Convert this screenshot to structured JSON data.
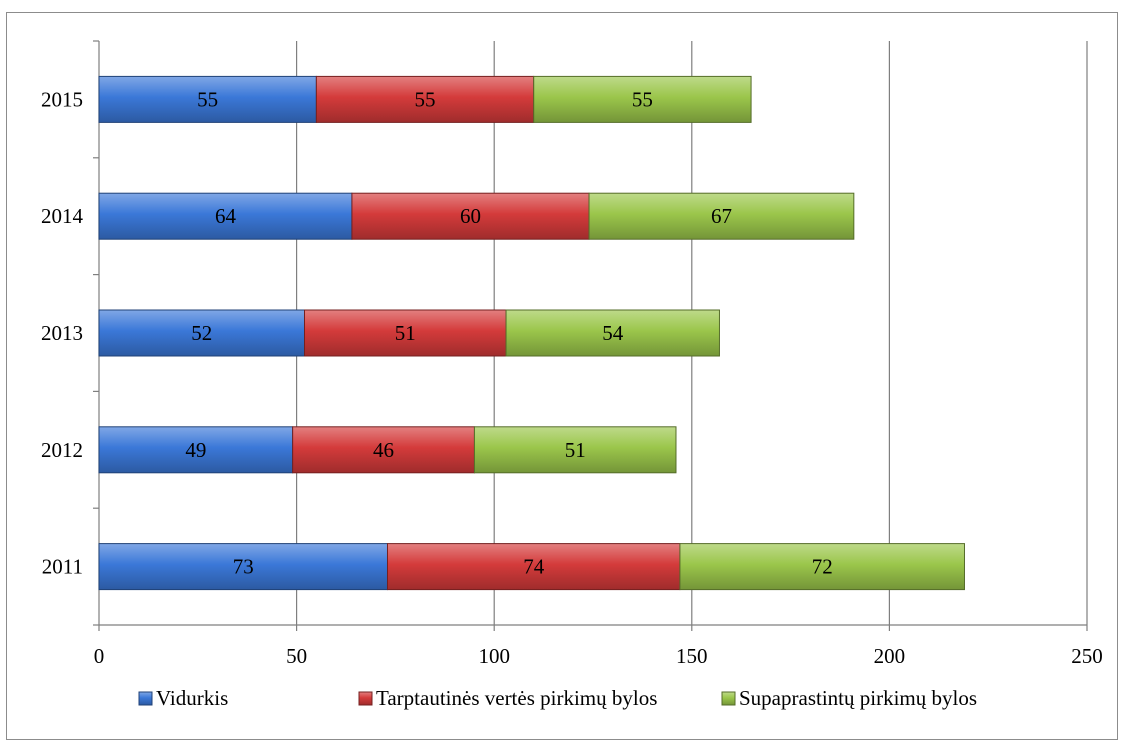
{
  "chart_data": {
    "type": "bar",
    "orientation": "horizontal",
    "stacked": true,
    "title": "",
    "xlabel": "",
    "ylabel": "",
    "categories": [
      "2011",
      "2012",
      "2013",
      "2014",
      "2015"
    ],
    "series": [
      {
        "name": "Vidurkis",
        "color": "#3b78d8",
        "values": [
          73,
          49,
          52,
          64,
          55
        ]
      },
      {
        "name": "Tarptautinės vertės pirkimų bylos",
        "color": "#d43b3b",
        "values": [
          74,
          46,
          51,
          60,
          55
        ]
      },
      {
        "name": "Supaprastintų pirkimų bylos",
        "color": "#9bc64b",
        "values": [
          72,
          51,
          54,
          67,
          55
        ]
      }
    ],
    "xlim": [
      0,
      250
    ],
    "x_ticks": [
      0,
      50,
      100,
      150,
      200,
      250
    ],
    "x_tick_labels": [
      "0",
      "50",
      "100",
      "150",
      "200",
      "250"
    ],
    "grid": "vertical",
    "legend_position": "bottom",
    "data_labels": "center"
  }
}
